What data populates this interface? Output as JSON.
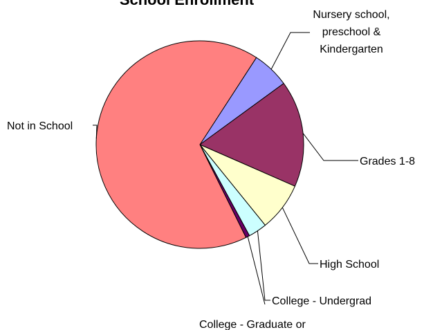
{
  "chart_data": {
    "type": "pie",
    "title": "School Enrollment",
    "slices": [
      {
        "label": "Nursery school, preschool & Kindergarten",
        "lines": [
          "Nursery school,",
          "preschool &",
          "Kindergarten"
        ],
        "value": 5.8,
        "color": "#9999FF"
      },
      {
        "label": "Grades 1-8",
        "lines": [
          "Grades 1-8"
        ],
        "value": 16.6,
        "color": "#993366"
      },
      {
        "label": "High School",
        "lines": [
          "High School"
        ],
        "value": 7.6,
        "color": "#FFFFCC"
      },
      {
        "label": "College - Undergrad",
        "lines": [
          "College - Undergrad"
        ],
        "value": 2.9,
        "color": "#CCFFFF"
      },
      {
        "label": "College - Graduate or",
        "lines": [
          "College - Graduate or"
        ],
        "value": 0.6,
        "color": "#660066"
      },
      {
        "label": "Not in School",
        "lines": [
          "Not in School"
        ],
        "value": 66.5,
        "color": "#FF8080"
      }
    ],
    "start_angle_deg": 33,
    "direction": "clockwise",
    "legend": "none"
  }
}
